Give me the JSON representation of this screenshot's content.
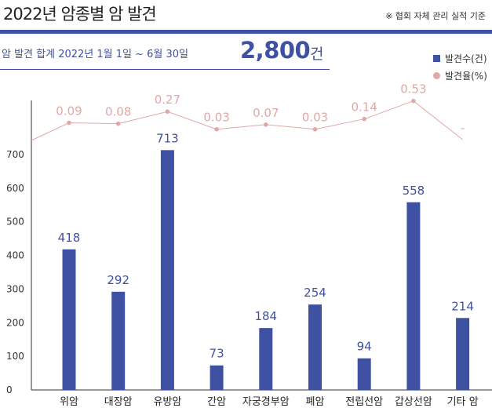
{
  "header": {
    "title": "2022년 암종별 암 발견",
    "note": "※ 협회 자체 관리 실적 기준"
  },
  "summary": {
    "label": "암 발견 합계   2022년 1월 1일 ~ 6월 30일",
    "value": "2,800",
    "unit": "건"
  },
  "colors": {
    "accent": "#3f51a3",
    "bar": "#3f51a3",
    "rate": "#e0a8a6"
  },
  "chart_data": {
    "type": "bar",
    "categories": [
      "위암",
      "대장암",
      "유방암",
      "간암",
      "자궁경부암",
      "폐암",
      "전립선암",
      "갑상선암",
      "기타 암"
    ],
    "series": [
      {
        "name": "발견수(건)",
        "type": "bar",
        "values": [
          418,
          292,
          713,
          73,
          184,
          254,
          94,
          558,
          214
        ],
        "labels": [
          "418",
          "292",
          "713",
          "73",
          "184",
          "254",
          "94",
          "558",
          "214"
        ]
      },
      {
        "name": "발견율(%)",
        "type": "line",
        "values": [
          0.09,
          0.08,
          0.27,
          0.03,
          0.07,
          0.03,
          0.14,
          0.53,
          null
        ],
        "labels": [
          "0.09",
          "0.08",
          "0.27",
          "0.03",
          "0.07",
          "0.03",
          "0.14",
          "0.53",
          "-"
        ]
      }
    ],
    "yticks": [
      "0",
      "100",
      "200",
      "300",
      "400",
      "500",
      "600",
      "700"
    ],
    "ylim": [
      0,
      800
    ],
    "legend_position": "top-right",
    "grid": false
  }
}
